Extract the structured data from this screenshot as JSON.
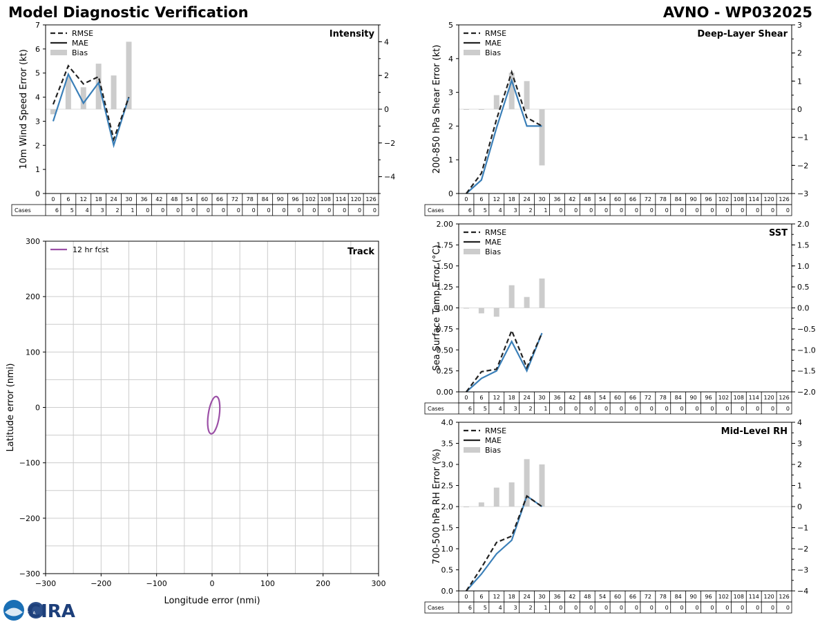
{
  "header": {
    "title": "Model Diagnostic Verification",
    "model_id": "AVNO - WP032025"
  },
  "logos": {
    "noaa": "NOAA",
    "cira": "CIRA"
  },
  "colors": {
    "mae": "#3a7fb8",
    "rmse": "#222222",
    "bias": "#cccccc",
    "track": "#9b4fa6",
    "grid": "#cccccc"
  },
  "table": {
    "cases_label": "Cases",
    "leads": [
      "0",
      "6",
      "12",
      "18",
      "24",
      "30",
      "36",
      "42",
      "48",
      "54",
      "60",
      "66",
      "72",
      "78",
      "84",
      "90",
      "96",
      "102",
      "108",
      "114",
      "120",
      "126"
    ],
    "cases": [
      "6",
      "5",
      "4",
      "3",
      "2",
      "1",
      "0",
      "0",
      "0",
      "0",
      "0",
      "0",
      "0",
      "0",
      "0",
      "0",
      "0",
      "0",
      "0",
      "0",
      "0",
      "0"
    ]
  },
  "chart_data": [
    {
      "id": "intensity",
      "type": "line",
      "title": "Intensity",
      "ylabel": "10m Wind Speed Error (kt)",
      "ylim": [
        0,
        7
      ],
      "yticks": [
        "0",
        "1",
        "2",
        "3",
        "4",
        "5",
        "6",
        "7"
      ],
      "y2lim": [
        -5,
        5
      ],
      "y2ticks": [
        "−4",
        "−2",
        "0",
        "2",
        "4"
      ],
      "y2tick_values": [
        -4,
        -2,
        0,
        2,
        4
      ],
      "legend": [
        "RMSE",
        "MAE",
        "Bias"
      ],
      "x": [
        0,
        6,
        12,
        18,
        24,
        30
      ],
      "series": [
        {
          "name": "RMSE",
          "values": [
            3.7,
            5.3,
            4.55,
            4.85,
            2.25,
            4.0
          ]
        },
        {
          "name": "MAE",
          "values": [
            3.0,
            4.95,
            3.75,
            4.6,
            2.0,
            4.0
          ]
        },
        {
          "name": "Bias",
          "axis": "right",
          "values": [
            -0.3,
            1.9,
            1.3,
            2.7,
            2.0,
            4.0
          ]
        }
      ]
    },
    {
      "id": "shear",
      "type": "line",
      "title": "Deep-Layer Shear",
      "ylabel": "200-850 hPa Shear Error (kt)",
      "ylim": [
        0,
        5
      ],
      "yticks": [
        "0",
        "1",
        "2",
        "3",
        "4",
        "5"
      ],
      "y2lim": [
        -3,
        3
      ],
      "y2ticks": [
        "−3",
        "−2",
        "−1",
        "0",
        "1",
        "2",
        "3"
      ],
      "y2tick_values": [
        -3,
        -2,
        -1,
        0,
        1,
        2,
        3
      ],
      "legend": [
        "RMSE",
        "MAE",
        "Bias"
      ],
      "x": [
        0,
        6,
        12,
        18,
        24,
        30
      ],
      "series": [
        {
          "name": "RMSE",
          "values": [
            0.0,
            0.6,
            2.2,
            3.6,
            2.25,
            2.0
          ]
        },
        {
          "name": "MAE",
          "values": [
            0.0,
            0.4,
            1.95,
            3.35,
            2.0,
            2.0
          ]
        },
        {
          "name": "Bias",
          "axis": "right",
          "values": [
            0.0,
            0.0,
            0.5,
            1.3,
            1.0,
            -2.0
          ]
        }
      ]
    },
    {
      "id": "sst",
      "type": "line",
      "title": "SST",
      "ylabel": "Sea Surface Temp Error (°C)",
      "ylim": [
        0,
        2
      ],
      "yticks": [
        "0.00",
        "0.25",
        "0.50",
        "0.75",
        "1.00",
        "1.25",
        "1.50",
        "1.75",
        "2.00"
      ],
      "y2lim": [
        -2,
        2
      ],
      "y2ticks": [
        "−2.0",
        "−1.5",
        "−1.0",
        "−0.5",
        "0.0",
        "0.5",
        "1.0",
        "1.5",
        "2.0"
      ],
      "y2tick_values": [
        -2,
        -1.5,
        -1,
        -0.5,
        0,
        0.5,
        1,
        1.5,
        2
      ],
      "legend": [
        "RMSE",
        "MAE",
        "Bias"
      ],
      "x": [
        0,
        6,
        12,
        18,
        24,
        30
      ],
      "series": [
        {
          "name": "RMSE",
          "values": [
            0.0,
            0.24,
            0.27,
            0.73,
            0.29,
            0.7
          ]
        },
        {
          "name": "MAE",
          "values": [
            0.0,
            0.16,
            0.25,
            0.6,
            0.25,
            0.7
          ]
        },
        {
          "name": "Bias",
          "axis": "right",
          "values": [
            0.0,
            -0.13,
            -0.21,
            0.54,
            0.26,
            0.7
          ]
        }
      ]
    },
    {
      "id": "rh",
      "type": "line",
      "title": "Mid-Level RH",
      "ylabel": "700-500 hPa RH Error (%)",
      "ylim": [
        0,
        4
      ],
      "yticks": [
        "0.0",
        "0.5",
        "1.0",
        "1.5",
        "2.0",
        "2.5",
        "3.0",
        "3.5",
        "4.0"
      ],
      "y2lim": [
        -4,
        4
      ],
      "y2ticks": [
        "−4",
        "−3",
        "−2",
        "−1",
        "0",
        "1",
        "2",
        "3",
        "4"
      ],
      "y2tick_values": [
        -4,
        -3,
        -2,
        -1,
        0,
        1,
        2,
        3,
        4
      ],
      "legend": [
        "RMSE",
        "MAE",
        "Bias"
      ],
      "x": [
        0,
        6,
        12,
        18,
        24,
        30
      ],
      "series": [
        {
          "name": "RMSE",
          "values": [
            0.0,
            0.55,
            1.15,
            1.3,
            2.25,
            2.0
          ]
        },
        {
          "name": "MAE",
          "values": [
            0.0,
            0.4,
            0.88,
            1.2,
            2.25,
            2.0
          ]
        },
        {
          "name": "Bias",
          "axis": "right",
          "values": [
            0.0,
            0.2,
            0.9,
            1.15,
            2.25,
            2.0
          ]
        }
      ]
    },
    {
      "id": "track",
      "type": "scatter",
      "title": "Track",
      "xlabel": "Longitude error (nmi)",
      "ylabel": "Latitude error (nmi)",
      "xlim": [
        -300,
        300
      ],
      "ylim": [
        -300,
        300
      ],
      "xticks": [
        "−300",
        "−200",
        "−100",
        "0",
        "100",
        "200",
        "300"
      ],
      "xtick_values": [
        -300,
        -200,
        -100,
        0,
        100,
        200,
        300
      ],
      "yticks": [
        "−300",
        "−200",
        "−100",
        "0",
        "100",
        "200",
        "300"
      ],
      "ytick_values": [
        -300,
        -200,
        -100,
        0,
        100,
        200,
        300
      ],
      "legend": [
        "12 hr fcst"
      ],
      "ellipse": {
        "name": "12 hr fcst",
        "center": [
          3,
          -14
        ],
        "semi_major": 34,
        "semi_minor": 10,
        "rotation_deg": 8
      }
    }
  ]
}
